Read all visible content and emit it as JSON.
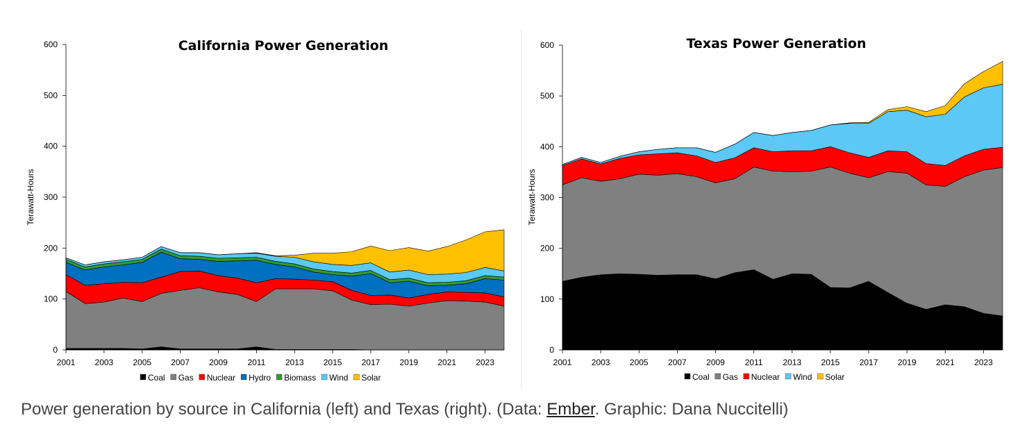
{
  "chart_data": [
    {
      "type": "area",
      "stacked": true,
      "title": "California Power Generation",
      "ylabel": "Terawatt-Hours",
      "xlabel": "",
      "ylim": [
        0,
        600
      ],
      "yticks": [
        0,
        100,
        200,
        300,
        400,
        500,
        600
      ],
      "x": [
        2001,
        2002,
        2003,
        2004,
        2005,
        2006,
        2007,
        2008,
        2009,
        2010,
        2011,
        2012,
        2013,
        2014,
        2015,
        2016,
        2017,
        2018,
        2019,
        2020,
        2021,
        2022,
        2023,
        2024
      ],
      "xticks": [
        2001,
        2003,
        2005,
        2007,
        2009,
        2011,
        2013,
        2015,
        2017,
        2019,
        2021,
        2023
      ],
      "series": [
        {
          "name": "Coal",
          "color": "#000000",
          "values": [
            3,
            3,
            3,
            3,
            2,
            6,
            2,
            2,
            2,
            2,
            6,
            1,
            1,
            1,
            1,
            1,
            0,
            0,
            0,
            0,
            0,
            0,
            0,
            0
          ]
        },
        {
          "name": "Gas",
          "color": "#808080",
          "values": [
            112,
            88,
            91,
            99,
            93,
            105,
            115,
            120,
            112,
            107,
            89,
            119,
            119,
            119,
            115,
            97,
            89,
            90,
            86,
            92,
            97,
            96,
            94,
            86
          ]
        },
        {
          "name": "Nuclear",
          "color": "#ff0000",
          "values": [
            33,
            36,
            36,
            31,
            37,
            32,
            37,
            33,
            32,
            32,
            37,
            20,
            19,
            17,
            18,
            19,
            18,
            18,
            16,
            17,
            17,
            17,
            18,
            18
          ]
        },
        {
          "name": "Hydro",
          "color": "#0070c0",
          "values": [
            24,
            30,
            33,
            34,
            40,
            49,
            25,
            23,
            28,
            34,
            44,
            28,
            24,
            16,
            14,
            28,
            43,
            24,
            33,
            17,
            13,
            17,
            28,
            33
          ]
        },
        {
          "name": "Biomass",
          "color": "#339933",
          "values": [
            6,
            6,
            6,
            6,
            6,
            6,
            6,
            6,
            6,
            6,
            6,
            6,
            6,
            6,
            6,
            6,
            6,
            6,
            6,
            6,
            6,
            6,
            6,
            6
          ]
        },
        {
          "name": "Wind",
          "color": "#5bc8f5",
          "values": [
            3,
            4,
            4,
            4,
            4,
            5,
            6,
            7,
            7,
            8,
            8,
            10,
            13,
            14,
            14,
            15,
            15,
            15,
            16,
            16,
            16,
            16,
            16,
            12
          ]
        },
        {
          "name": "Solar",
          "color": "#ffc000",
          "values": [
            0,
            0,
            0,
            0,
            0,
            0,
            0,
            0,
            0,
            0,
            1,
            1,
            4,
            17,
            22,
            27,
            33,
            42,
            44,
            46,
            54,
            64,
            70,
            81
          ]
        }
      ],
      "legend": [
        "Coal",
        "Gas",
        "Nuclear",
        "Hydro",
        "Biomass",
        "Wind",
        "Solar"
      ]
    },
    {
      "type": "area",
      "stacked": true,
      "title": "Texas Power Generation",
      "ylabel": "Terawatt-Hours",
      "xlabel": "",
      "ylim": [
        0,
        600
      ],
      "yticks": [
        0,
        100,
        200,
        300,
        400,
        500,
        600
      ],
      "x": [
        2001,
        2002,
        2003,
        2004,
        2005,
        2006,
        2007,
        2008,
        2009,
        2010,
        2011,
        2012,
        2013,
        2014,
        2015,
        2016,
        2017,
        2018,
        2019,
        2020,
        2021,
        2022,
        2023,
        2024
      ],
      "xticks": [
        2001,
        2003,
        2005,
        2007,
        2009,
        2011,
        2013,
        2015,
        2017,
        2019,
        2021,
        2023
      ],
      "series": [
        {
          "name": "Coal",
          "color": "#000000",
          "values": [
            135,
            143,
            148,
            150,
            149,
            147,
            148,
            148,
            140,
            152,
            158,
            139,
            150,
            149,
            123,
            122,
            135,
            113,
            92,
            80,
            89,
            85,
            72,
            67
          ]
        },
        {
          "name": "Gas",
          "color": "#808080",
          "values": [
            190,
            196,
            184,
            187,
            197,
            197,
            199,
            193,
            189,
            185,
            202,
            213,
            201,
            203,
            237,
            226,
            204,
            238,
            256,
            245,
            233,
            256,
            282,
            292
          ]
        },
        {
          "name": "Nuclear",
          "color": "#ff0000",
          "values": [
            38,
            37,
            34,
            40,
            38,
            42,
            41,
            41,
            40,
            41,
            38,
            38,
            41,
            40,
            40,
            40,
            40,
            41,
            42,
            42,
            41,
            41,
            41,
            40
          ]
        },
        {
          "name": "Wind",
          "color": "#5bc8f5",
          "values": [
            2,
            3,
            3,
            4,
            6,
            9,
            10,
            16,
            20,
            27,
            30,
            32,
            36,
            40,
            43,
            58,
            67,
            77,
            82,
            92,
            101,
            116,
            121,
            124
          ]
        },
        {
          "name": "Solar",
          "color": "#ffc000",
          "values": [
            0,
            0,
            0,
            0,
            0,
            0,
            0,
            0,
            0,
            0,
            0,
            0,
            0,
            0,
            0,
            1,
            2,
            4,
            7,
            10,
            17,
            26,
            32,
            45
          ]
        }
      ],
      "legend": [
        "Coal",
        "Gas",
        "Nuclear",
        "Wind",
        "Solar"
      ]
    }
  ],
  "caption": {
    "before": "Power generation by source in California (left) and Texas (right). (Data: ",
    "link": "Ember",
    "after": ". Graphic: Dana Nuccitelli)"
  }
}
